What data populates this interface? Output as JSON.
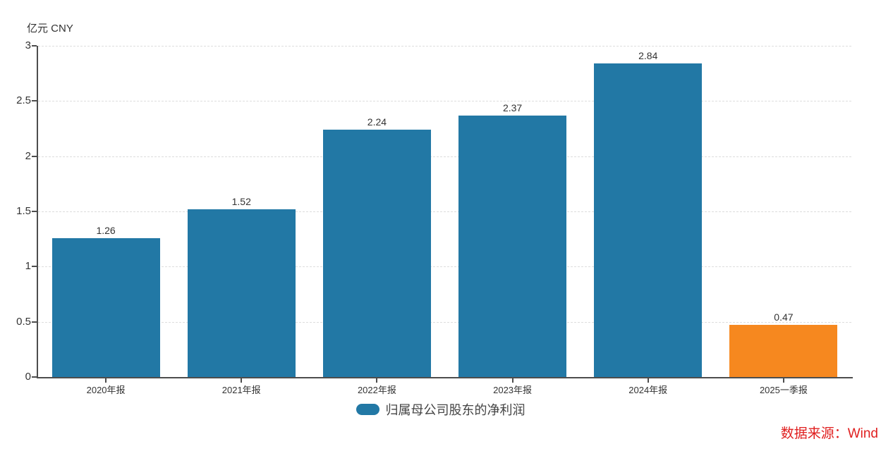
{
  "header": {
    "unit_label": "亿元 CNY"
  },
  "legend": {
    "label": "归属母公司股东的净利润"
  },
  "footer": {
    "source_label": "数据来源：Wind"
  },
  "colors": {
    "bar_blue": "#2278a5",
    "bar_orange": "#f6881f",
    "axis": "#4d4d4d",
    "grid": "#dddddd",
    "text": "#333333",
    "legend_text": "#444444",
    "source_red": "#e01f1f",
    "background": "#ffffff"
  },
  "chart_data": {
    "type": "bar",
    "title": "",
    "series_name": "归属母公司股东的净利润",
    "categories": [
      "2020年报",
      "2021年报",
      "2022年报",
      "2023年报",
      "2024年报",
      "2025一季报"
    ],
    "values": [
      1.26,
      1.52,
      2.24,
      2.37,
      2.84,
      0.47
    ],
    "value_labels": [
      "1.26",
      "1.52",
      "2.24",
      "2.37",
      "2.84",
      "0.47"
    ],
    "bar_colors": [
      "#2278a5",
      "#2278a5",
      "#2278a5",
      "#2278a5",
      "#2278a5",
      "#f6881f"
    ],
    "xlabel": "",
    "ylabel": "亿元 CNY",
    "ylim": [
      0,
      3
    ],
    "yticks": [
      0,
      0.5,
      1,
      1.5,
      2,
      2.5,
      3
    ],
    "ytick_labels": [
      "0",
      "0.5",
      "1",
      "1.5",
      "2",
      "2.5",
      "3"
    ],
    "grid": true,
    "grid_style": "dashed",
    "legend_position": "bottom"
  }
}
